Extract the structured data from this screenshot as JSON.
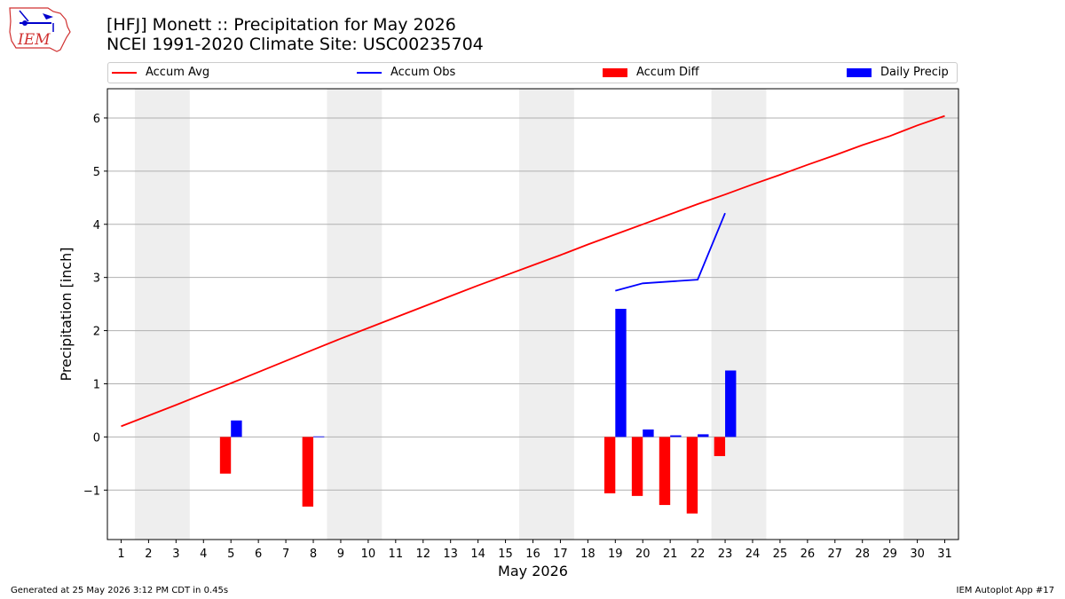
{
  "header": {
    "title_line1": "[HFJ] Monett :: Precipitation for May 2026",
    "title_line2": "NCEI 1991-2020 Climate Site: USC00235704",
    "logo_text": "IEM"
  },
  "legend": {
    "items": [
      {
        "label": "Accum Avg",
        "color": "#ff0000",
        "kind": "line"
      },
      {
        "label": "Accum Obs",
        "color": "#0000ff",
        "kind": "line"
      },
      {
        "label": "Accum Diff",
        "color": "#ff0000",
        "kind": "bar"
      },
      {
        "label": "Daily Precip",
        "color": "#0000ff",
        "kind": "bar"
      }
    ]
  },
  "footer": {
    "left": "Generated at 25 May 2026 3:12 PM CDT in 0.45s",
    "right": "IEM Autoplot App #17"
  },
  "chart_data": {
    "type": "bar",
    "xlabel": "May 2026",
    "ylabel": "Precipitation [inch]",
    "xlim": [
      0.5,
      31.5
    ],
    "ylim": [
      -1.93,
      6.55
    ],
    "yticks": [
      -1,
      0,
      1,
      2,
      3,
      4,
      5,
      6
    ],
    "ytick_labels": [
      "−1",
      "0",
      "1",
      "2",
      "3",
      "4",
      "5",
      "6"
    ],
    "x": [
      1,
      2,
      3,
      4,
      5,
      6,
      7,
      8,
      9,
      10,
      11,
      12,
      13,
      14,
      15,
      16,
      17,
      18,
      19,
      20,
      21,
      22,
      23,
      24,
      25,
      26,
      27,
      28,
      29,
      30,
      31
    ],
    "weekend_days": [
      [
        2,
        3
      ],
      [
        9,
        10
      ],
      [
        16,
        17
      ],
      [
        23,
        24
      ],
      [
        30,
        31
      ]
    ],
    "grid": "y",
    "legend_position": "top",
    "series": [
      {
        "name": "Accum Avg",
        "kind": "line",
        "color": "#ff0000",
        "x": [
          1,
          2,
          3,
          4,
          5,
          6,
          7,
          8,
          9,
          10,
          11,
          12,
          13,
          14,
          15,
          16,
          17,
          18,
          19,
          20,
          21,
          22,
          23,
          24,
          25,
          26,
          27,
          28,
          29,
          30,
          31
        ],
        "values": [
          0.2,
          0.4,
          0.6,
          0.81,
          1.01,
          1.22,
          1.43,
          1.64,
          1.85,
          2.05,
          2.25,
          2.45,
          2.65,
          2.85,
          3.04,
          3.23,
          3.42,
          3.62,
          3.81,
          4.0,
          4.19,
          4.38,
          4.56,
          4.75,
          4.93,
          5.12,
          5.3,
          5.49,
          5.66,
          5.86,
          6.04
        ]
      },
      {
        "name": "Accum Obs",
        "kind": "line",
        "color": "#0000ff",
        "x": [
          19,
          20,
          22,
          23
        ],
        "values": [
          2.75,
          2.89,
          2.96,
          4.21
        ]
      },
      {
        "name": "Accum Diff",
        "kind": "bar",
        "color": "#ff0000",
        "x": [
          5,
          8,
          19,
          20,
          21,
          22,
          23
        ],
        "values": [
          -0.69,
          -1.31,
          -1.06,
          -1.11,
          -1.28,
          -1.44,
          -0.36
        ]
      },
      {
        "name": "Daily Precip",
        "kind": "bar",
        "color": "#0000ff",
        "x": [
          5,
          8,
          19,
          20,
          21,
          22,
          23
        ],
        "values": [
          0.31,
          0.01,
          2.41,
          0.14,
          0.03,
          0.05,
          1.25
        ]
      }
    ]
  }
}
